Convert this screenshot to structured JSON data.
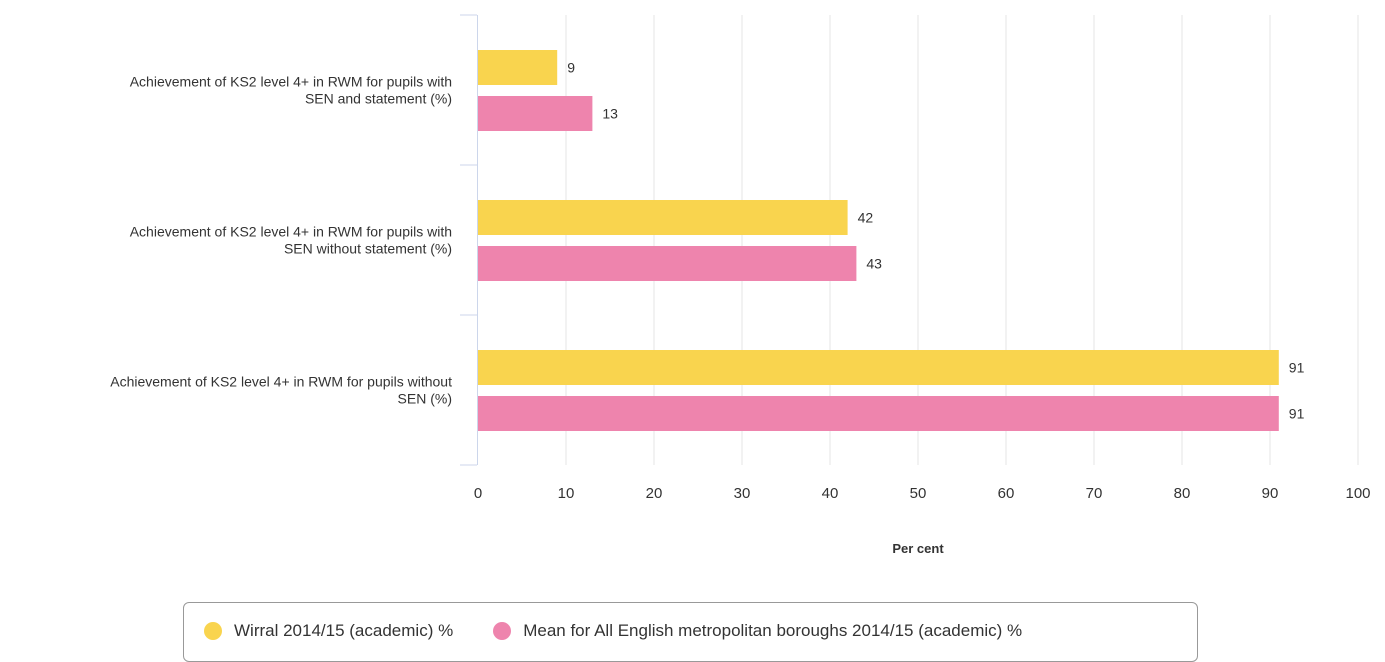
{
  "chart_data": {
    "type": "bar",
    "orientation": "horizontal",
    "categories": [
      [
        "Achievement of KS2 level 4+ in RWM for pupils with",
        "SEN and statement (%)"
      ],
      [
        "Achievement of KS2 level 4+ in RWM for pupils with",
        "SEN without statement (%)"
      ],
      [
        "Achievement of KS2 level 4+ in RWM for pupils without",
        "SEN (%)"
      ]
    ],
    "series": [
      {
        "name": "Wirral 2014/15 (academic) %",
        "color": "#f9d44e",
        "values": [
          9,
          42,
          91
        ]
      },
      {
        "name": "Mean for All English metropolitan boroughs 2014/15 (academic) %",
        "color": "#ee84ad",
        "values": [
          13,
          43,
          91
        ]
      }
    ],
    "xlabel": "Per cent",
    "xlim": [
      0,
      100
    ],
    "xticks": [
      0,
      10,
      20,
      30,
      40,
      50,
      60,
      70,
      80,
      90,
      100
    ],
    "grid": true,
    "legend_position": "bottom",
    "data_labels": true
  }
}
